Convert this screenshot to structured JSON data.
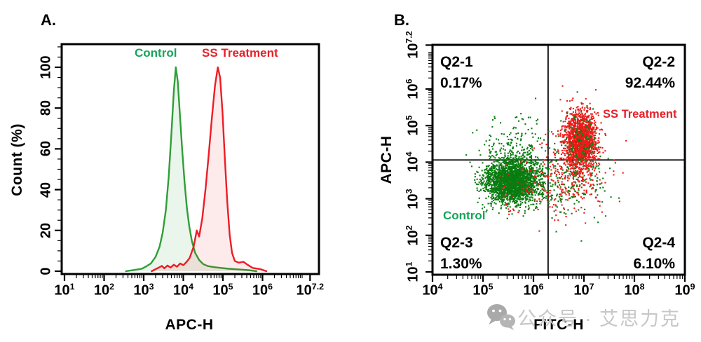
{
  "figure": {
    "panel_a_label": "A.",
    "panel_b_label": "B.",
    "watermark": {
      "icon": "wechat-icon",
      "text": "公众号 · 艾思力克",
      "color": "#c7c7c7"
    }
  },
  "chart_data": [
    {
      "id": "panel-a-histogram",
      "type": "area",
      "title": "",
      "xlabel": "APC-H",
      "ylabel": "Count  (%)",
      "x_scale": "log10",
      "x_tick_exponents": [
        "1",
        "2",
        "3",
        "4",
        "5",
        "6",
        "7.2"
      ],
      "x_range_exponents": [
        1,
        7.2
      ],
      "y_ticks": [
        0,
        20,
        40,
        60,
        80,
        100
      ],
      "y_minor_step": 5,
      "ylim": [
        0,
        100
      ],
      "grid": false,
      "legend_position": "top-inside",
      "series": [
        {
          "name": "Control",
          "stroke": "#2f9e37",
          "fill": "rgba(47,158,55,0.10)",
          "label_color": "#16a45a",
          "points_log10x_pct": [
            [
              2.55,
              0
            ],
            [
              2.75,
              0.6
            ],
            [
              2.95,
              1.2
            ],
            [
              3.05,
              2.2
            ],
            [
              3.18,
              3.8
            ],
            [
              3.3,
              7
            ],
            [
              3.4,
              12
            ],
            [
              3.48,
              19
            ],
            [
              3.56,
              30
            ],
            [
              3.63,
              46
            ],
            [
              3.7,
              68
            ],
            [
              3.76,
              88
            ],
            [
              3.81,
              100
            ],
            [
              3.86,
              93
            ],
            [
              3.91,
              78
            ],
            [
              3.97,
              60
            ],
            [
              4.03,
              44
            ],
            [
              4.09,
              31
            ],
            [
              4.15,
              22
            ],
            [
              4.22,
              14.5
            ],
            [
              4.3,
              9
            ],
            [
              4.4,
              5.5
            ],
            [
              4.5,
              3.5
            ],
            [
              4.62,
              2.5
            ],
            [
              4.78,
              2.0
            ],
            [
              4.95,
              1.6
            ],
            [
              5.15,
              1.2
            ],
            [
              5.4,
              0.9
            ],
            [
              5.65,
              0.5
            ],
            [
              5.85,
              0
            ]
          ]
        },
        {
          "name": "SS Treatment",
          "stroke": "#ee1c25",
          "fill": "rgba(238,28,37,0.09)",
          "label_color": "#e62129",
          "points_log10x_pct": [
            [
              3.2,
              0
            ],
            [
              3.3,
              1.0
            ],
            [
              3.38,
              1.8
            ],
            [
              3.46,
              2.6
            ],
            [
              3.52,
              1.4
            ],
            [
              3.6,
              2.8
            ],
            [
              3.68,
              1.8
            ],
            [
              3.76,
              3.2
            ],
            [
              3.84,
              2.2
            ],
            [
              3.92,
              3.8
            ],
            [
              4.0,
              3.0
            ],
            [
              4.08,
              4.5
            ],
            [
              4.16,
              6.5
            ],
            [
              4.26,
              12
            ],
            [
              4.34,
              20
            ],
            [
              4.4,
              17
            ],
            [
              4.48,
              26
            ],
            [
              4.56,
              40
            ],
            [
              4.64,
              57
            ],
            [
              4.72,
              75
            ],
            [
              4.8,
              91
            ],
            [
              4.87,
              100
            ],
            [
              4.93,
              95
            ],
            [
              4.99,
              78
            ],
            [
              5.05,
              55
            ],
            [
              5.11,
              34
            ],
            [
              5.17,
              18
            ],
            [
              5.23,
              9
            ],
            [
              5.3,
              5
            ],
            [
              5.4,
              4.2
            ],
            [
              5.52,
              4.6
            ],
            [
              5.62,
              3.2
            ],
            [
              5.75,
              1.6
            ],
            [
              5.95,
              1.0
            ],
            [
              6.1,
              0
            ]
          ]
        }
      ]
    },
    {
      "id": "panel-b-scatter",
      "type": "scatter",
      "title": "",
      "xlabel": "FITC-H",
      "ylabel": "APC-H",
      "x_scale": "log10",
      "y_scale": "log10",
      "x_tick_exponents": [
        "4",
        "5",
        "6",
        "7",
        "8",
        "9"
      ],
      "y_tick_exponents": [
        "1",
        "2",
        "3",
        "4",
        "5",
        "6",
        "7.2"
      ],
      "x_range_exponents": [
        4,
        9
      ],
      "y_range_exponents": [
        1,
        7.2
      ],
      "quadrant_gate": {
        "x_log10": 6.29,
        "y_log10": 4.06,
        "labels": [
          {
            "name": "Q2-1",
            "value": "0.17%",
            "position": "top-left"
          },
          {
            "name": "Q2-2",
            "value": "92.44%",
            "position": "top-right"
          },
          {
            "name": "Q2-3",
            "value": "1.30%",
            "position": "bottom-left"
          },
          {
            "name": "Q2-4",
            "value": "6.10%",
            "position": "bottom-right"
          }
        ]
      },
      "annotations": [
        {
          "text": "SS Treatment",
          "color": "#e62129"
        },
        {
          "text": "Control",
          "color": "#16a45a"
        }
      ],
      "clusters": [
        {
          "name": "control-core",
          "color": "#087c10",
          "cx": 5.58,
          "cy": 3.46,
          "sx": 0.26,
          "sy": 0.28,
          "n": 2400,
          "seed": 11
        },
        {
          "name": "control-halo",
          "color": "#087c10",
          "cx": 5.62,
          "cy": 4.3,
          "sx": 0.32,
          "sy": 0.5,
          "n": 230,
          "seed": 22
        },
        {
          "name": "control-right-spray",
          "color": "#087c10",
          "cx": 6.65,
          "cy": 3.5,
          "sx": 0.45,
          "sy": 0.5,
          "n": 250,
          "seed": 33
        },
        {
          "name": "treated-left-spray",
          "color": "#ef1a1a",
          "cx": 5.9,
          "cy": 3.35,
          "sx": 0.38,
          "sy": 0.4,
          "n": 55,
          "seed": 77
        },
        {
          "name": "treated-spray",
          "color": "#ef1a1a",
          "cx": 6.68,
          "cy": 3.55,
          "sx": 0.38,
          "sy": 0.52,
          "n": 230,
          "seed": 66
        },
        {
          "name": "treated-core",
          "color": "#ef1a1a",
          "cx": 6.93,
          "cy": 4.58,
          "sx": 0.15,
          "sy": 0.4,
          "n": 1750,
          "seed": 55
        },
        {
          "name": "control-in-treated",
          "color": "#087c10",
          "cx": 6.93,
          "cy": 4.45,
          "sx": 0.17,
          "sy": 0.42,
          "n": 150,
          "seed": 44
        }
      ]
    }
  ]
}
